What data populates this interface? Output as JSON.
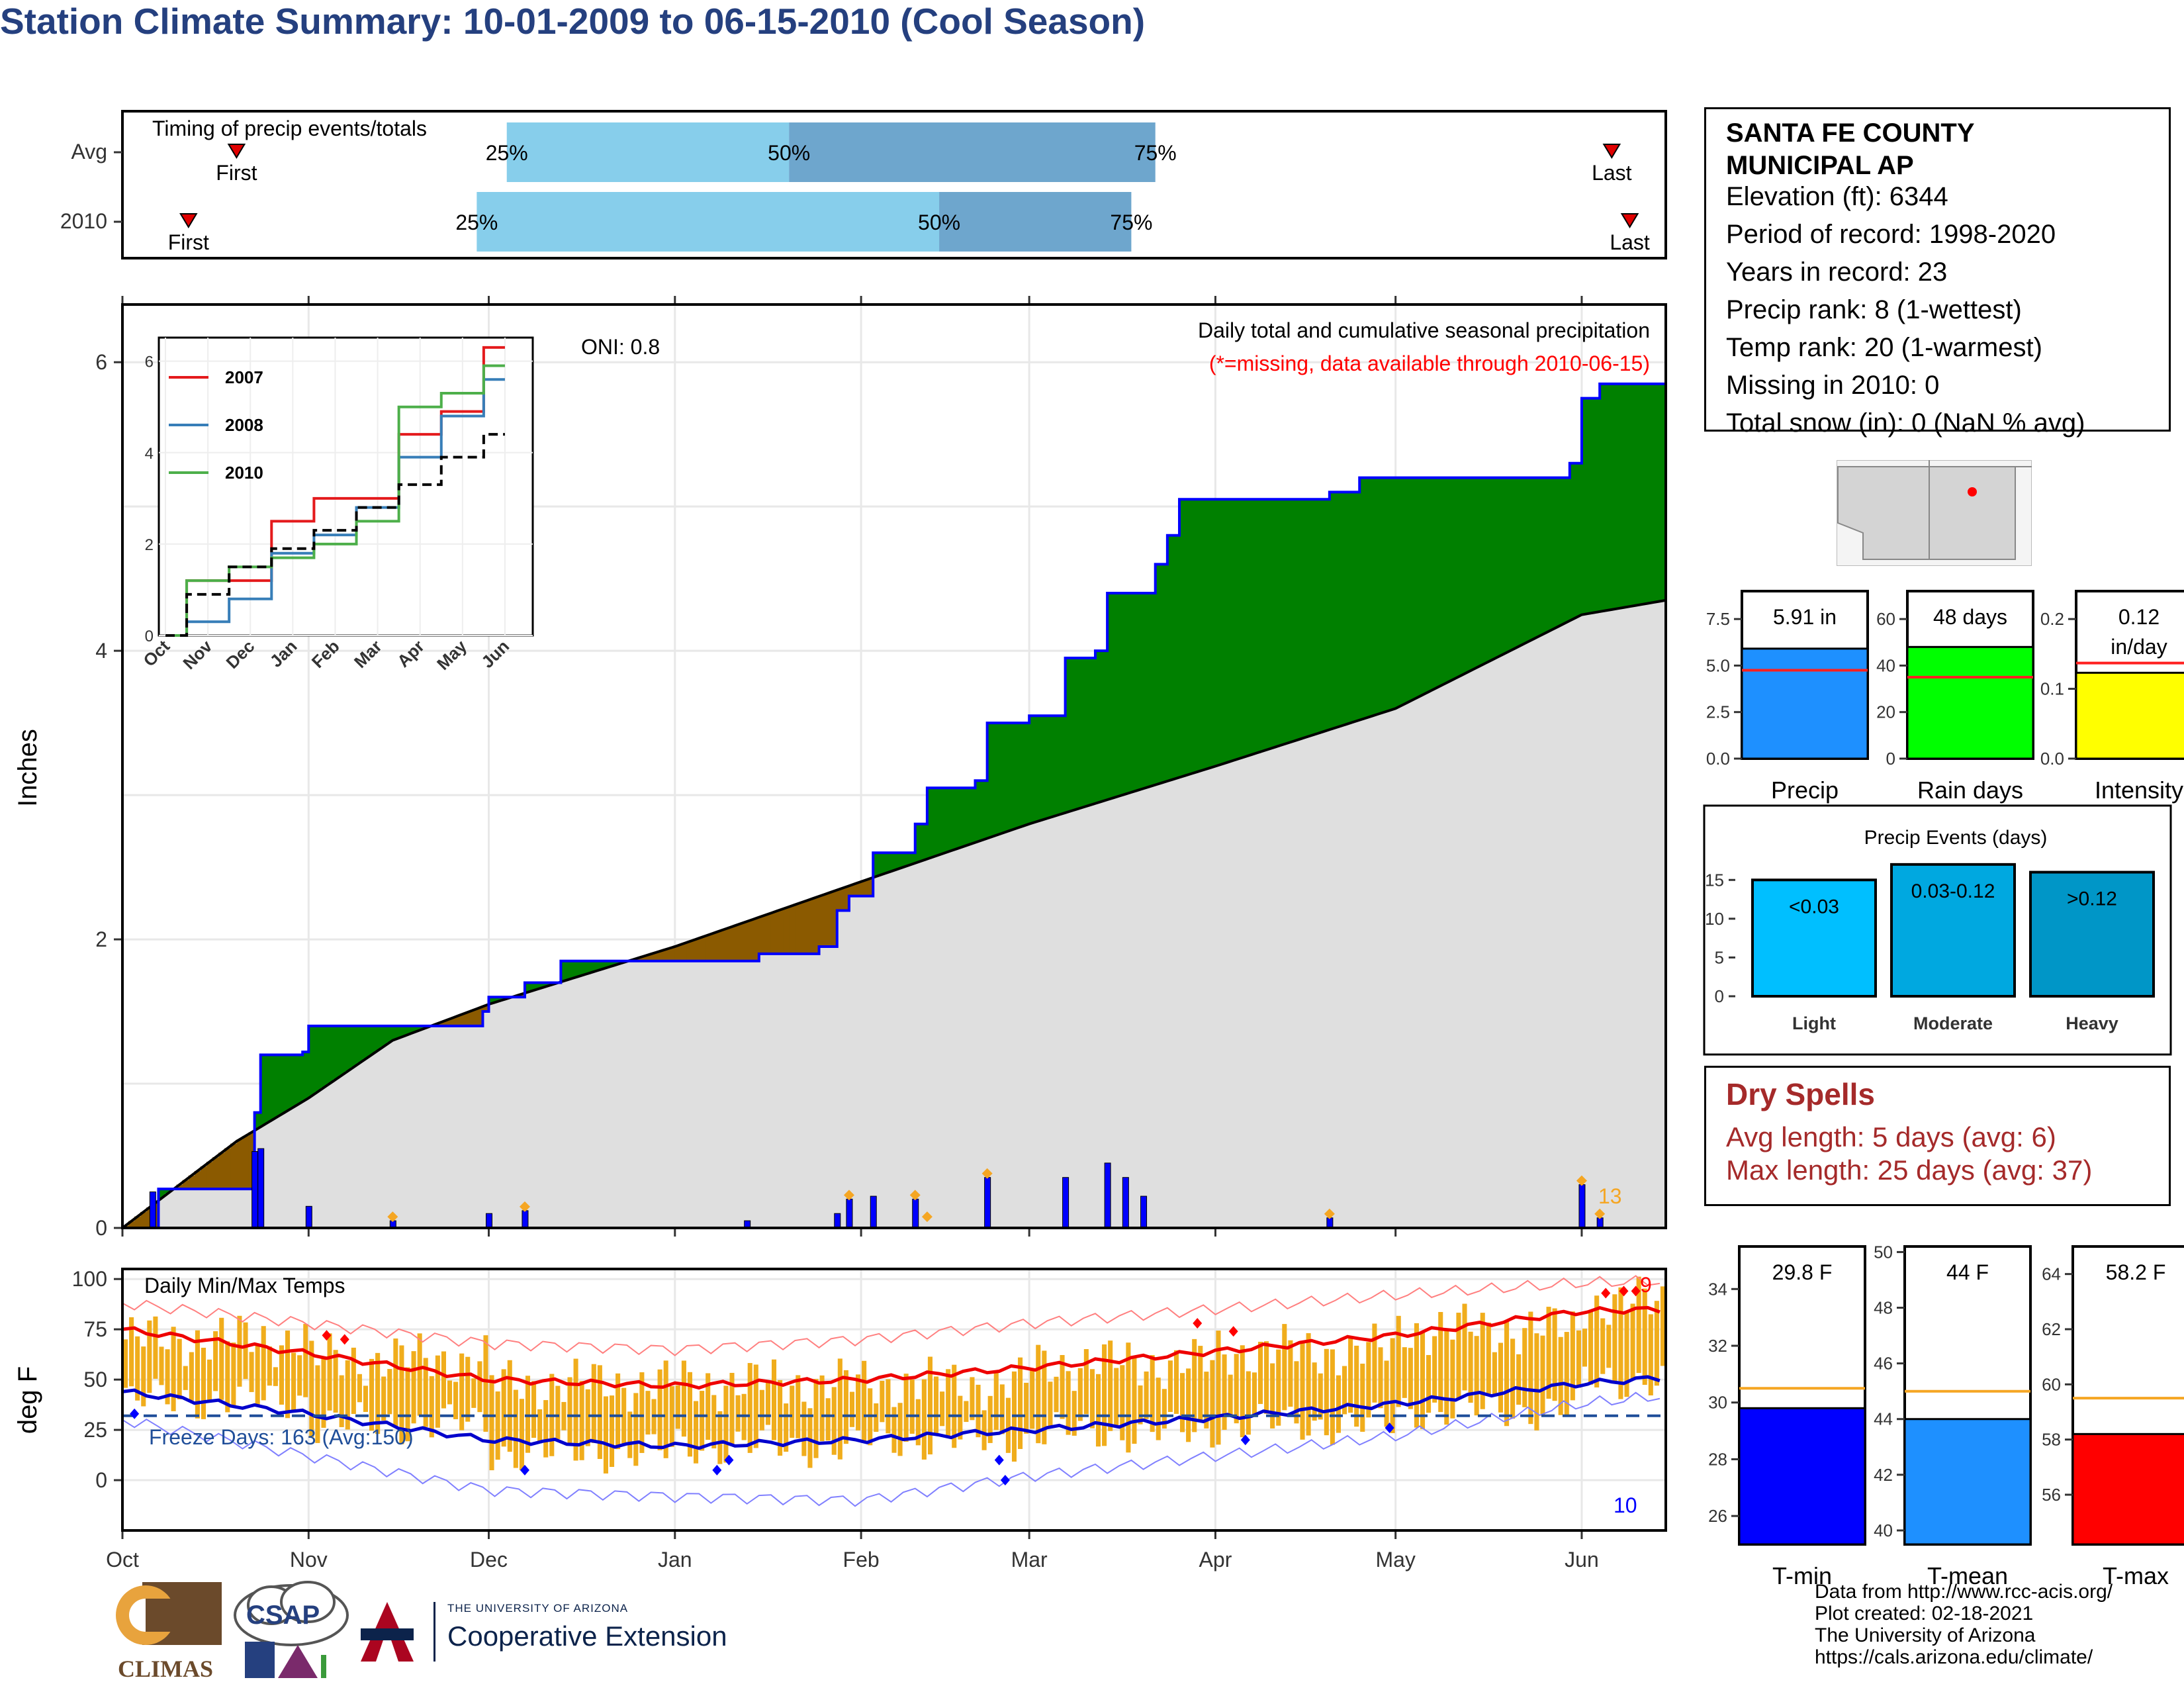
{
  "title": "Station Climate Summary: 10-01-2009 to 06-15-2010 (Cool Season)",
  "colors": {
    "title": "#25407f",
    "light_blue": "#87ceeb",
    "mid_blue": "#6ea6cd",
    "above_normal": "#008000",
    "below_normal": "#8b5a00",
    "normal_fill": "#dfdfdf",
    "precip_line": "#0000ff",
    "temp_bar": "#f0ad1c",
    "tmax_normal": "#ee0000",
    "tmin_normal": "#0000cc",
    "dry_spell_text": "#a52a2a"
  },
  "timing": {
    "title": "Timing of precip events/totals",
    "rows": [
      {
        "label": "Avg",
        "first_label": "First",
        "last_label": "Last",
        "first": "Oct 20",
        "last": "Jun 6",
        "p25_label": "25%",
        "p50_label": "50%",
        "p75_label": "75%",
        "p25": "Dec 4",
        "p50": "Jan 20",
        "p75": "Mar 22"
      },
      {
        "label": "2010",
        "first_label": "First",
        "last_label": "Last",
        "first": "Oct 12",
        "last": "Jun 9",
        "p25_label": "25%",
        "p50_label": "50%",
        "p75_label": "75%",
        "p25": "Nov 29",
        "p50": "Feb 14",
        "p75": "Mar 18"
      }
    ]
  },
  "precip_panel": {
    "ylabel": "Inches",
    "oni_label": "ONI: 0.8",
    "title": "Daily total and cumulative seasonal precipitation",
    "missing_note": "(*=missing, data available through 2010-06-15)",
    "count_label": "13",
    "ylim": [
      0,
      6.4
    ],
    "yticks": [
      "0",
      "2",
      "4",
      "6"
    ]
  },
  "inset": {
    "legend": [
      "2007",
      "2008",
      "2010"
    ],
    "legend_colors": [
      "#e41a1c",
      "#377eb8",
      "#4daf4a"
    ],
    "months": [
      "Oct",
      "Nov",
      "Dec",
      "Jan",
      "Feb",
      "Mar",
      "Apr",
      "May",
      "Jun"
    ],
    "yticks": [
      "0",
      "2",
      "4",
      "6"
    ]
  },
  "temp_panel": {
    "ylabel": "deg F",
    "title": "Daily Min/Max Temps",
    "freeze_label": "Freeze Days: 163 (Avg:150)",
    "hot_count": "9",
    "cold_count": "10",
    "yticks": [
      "0",
      "25",
      "50",
      "75",
      "100"
    ],
    "months": [
      "Oct",
      "Nov",
      "Dec",
      "Jan",
      "Feb",
      "Mar",
      "Apr",
      "May",
      "Jun"
    ]
  },
  "station": {
    "name_line1": "SANTA FE COUNTY",
    "name_line2": "MUNICIPAL AP",
    "elevation": "Elevation (ft): 6344",
    "period": "Period of record: 1998-2020",
    "years": "Years in record: 23",
    "precip_rank": "Precip rank: 8 (1-wettest)",
    "temp_rank": "Temp rank: 20 (1-warmest)",
    "missing": "Missing in 2010: 0",
    "snow": "Total snow (in): 0 (NaN % avg)"
  },
  "summary_bars": [
    {
      "name": "Precip",
      "value_label": "5.91 in",
      "value": 5.91,
      "avg": 4.75,
      "ymax": 9.0,
      "ticks": [
        "0.0",
        "2.5",
        "5.0",
        "7.5"
      ],
      "color": "#1e90ff"
    },
    {
      "name": "Rain days",
      "value_label": "48 days",
      "value": 48,
      "avg": 35,
      "ymax": 72,
      "ticks": [
        "0",
        "20",
        "40",
        "60"
      ],
      "color": "#00ff00"
    },
    {
      "name": "Intensity",
      "value_label_1": "0.12",
      "value_label_2": "in/day",
      "value": 0.123,
      "avg": 0.137,
      "ymax": 0.24,
      "ticks": [
        "0.0",
        "0.1",
        "0.2"
      ],
      "color": "#ffff00"
    }
  ],
  "precip_events": {
    "title": "Precip Events (days)",
    "categories": [
      "Light",
      "Moderate",
      "Heavy"
    ],
    "range_labels": [
      "<0.03",
      "0.03-0.12",
      ">0.12"
    ],
    "values": [
      15,
      17,
      16
    ],
    "colors": [
      "#00bfff",
      "#00a8e0",
      "#0096c7"
    ],
    "ticks": [
      "0",
      "5",
      "10",
      "15"
    ]
  },
  "dry_spells": {
    "title": "Dry Spells",
    "avg_length": "Avg length: 5 days (avg: 6)",
    "max_length": "Max length: 25 days (avg: 37)"
  },
  "temp_bars": [
    {
      "name": "T-min",
      "value_label": "29.8 F",
      "value": 29.8,
      "avg": 30.5,
      "ymin": 25,
      "ymax": 35.5,
      "ticks": [
        "26",
        "28",
        "30",
        "32",
        "34"
      ],
      "color": "#0000ff"
    },
    {
      "name": "T-mean",
      "value_label": "44 F",
      "value": 44.0,
      "avg": 45.0,
      "ymin": 39.5,
      "ymax": 50.2,
      "ticks": [
        "40",
        "42",
        "44",
        "46",
        "48",
        "50"
      ],
      "color": "#1e90ff"
    },
    {
      "name": "T-max",
      "value_label": "58.2 F",
      "value": 58.2,
      "avg": 59.5,
      "ymin": 54.2,
      "ymax": 65.0,
      "ticks": [
        "56",
        "58",
        "60",
        "62",
        "64"
      ],
      "color": "#ff0000"
    }
  ],
  "logos": {
    "climas": "CLIMAS",
    "csap": "CSAP",
    "ua_line1": "THE UNIVERSITY OF ARIZONA",
    "ua_line2": "Cooperative Extension"
  },
  "credits": {
    "line1": "Data from http://www.rcc-acis.org/",
    "line2": "Plot created: 02-18-2021",
    "line3": "The University of Arizona",
    "line4": "https://cals.arizona.edu/climate/"
  },
  "chart_data": [
    {
      "type": "area",
      "title": "Daily total and cumulative seasonal precipitation",
      "ylabel": "Inches",
      "ylim": [
        0,
        6.4
      ],
      "x_range": [
        "2009-10-01",
        "2010-06-15"
      ],
      "cumulative_observed": [
        {
          "x": "2009-10-01",
          "y": 0.0
        },
        {
          "x": "2009-10-07",
          "y": 0.27
        },
        {
          "x": "2009-10-08",
          "y": 0.27
        },
        {
          "x": "2009-10-22",
          "y": 0.27
        },
        {
          "x": "2009-10-23",
          "y": 0.8
        },
        {
          "x": "2009-10-24",
          "y": 1.2
        },
        {
          "x": "2009-10-31",
          "y": 1.22
        },
        {
          "x": "2009-11-01",
          "y": 1.4
        },
        {
          "x": "2009-11-30",
          "y": 1.5
        },
        {
          "x": "2009-12-01",
          "y": 1.6
        },
        {
          "x": "2009-12-07",
          "y": 1.7
        },
        {
          "x": "2009-12-13",
          "y": 1.85
        },
        {
          "x": "2010-01-15",
          "y": 1.9
        },
        {
          "x": "2010-01-25",
          "y": 1.95
        },
        {
          "x": "2010-01-28",
          "y": 2.2
        },
        {
          "x": "2010-01-30",
          "y": 2.3
        },
        {
          "x": "2010-02-03",
          "y": 2.6
        },
        {
          "x": "2010-02-10",
          "y": 2.8
        },
        {
          "x": "2010-02-12",
          "y": 3.05
        },
        {
          "x": "2010-02-20",
          "y": 3.1
        },
        {
          "x": "2010-02-22",
          "y": 3.5
        },
        {
          "x": "2010-03-01",
          "y": 3.55
        },
        {
          "x": "2010-03-07",
          "y": 3.95
        },
        {
          "x": "2010-03-12",
          "y": 4.0
        },
        {
          "x": "2010-03-14",
          "y": 4.4
        },
        {
          "x": "2010-03-22",
          "y": 4.6
        },
        {
          "x": "2010-03-24",
          "y": 4.8
        },
        {
          "x": "2010-03-26",
          "y": 5.05
        },
        {
          "x": "2010-04-20",
          "y": 5.1
        },
        {
          "x": "2010-04-25",
          "y": 5.2
        },
        {
          "x": "2010-05-30",
          "y": 5.3
        },
        {
          "x": "2010-06-01",
          "y": 5.75
        },
        {
          "x": "2010-06-04",
          "y": 5.85
        },
        {
          "x": "2010-06-15",
          "y": 5.91
        }
      ],
      "cumulative_normal": [
        {
          "x": "2009-10-01",
          "y": 0.0
        },
        {
          "x": "2009-10-20",
          "y": 0.6
        },
        {
          "x": "2009-11-01",
          "y": 0.9
        },
        {
          "x": "2009-11-15",
          "y": 1.3
        },
        {
          "x": "2009-12-01",
          "y": 1.55
        },
        {
          "x": "2010-01-01",
          "y": 1.95
        },
        {
          "x": "2010-02-01",
          "y": 2.4
        },
        {
          "x": "2010-03-01",
          "y": 2.8
        },
        {
          "x": "2010-04-01",
          "y": 3.2
        },
        {
          "x": "2010-05-01",
          "y": 3.6
        },
        {
          "x": "2010-06-01",
          "y": 4.25
        },
        {
          "x": "2010-06-15",
          "y": 4.35
        }
      ],
      "daily_precip": [
        {
          "x": "2009-10-06",
          "y": 0.25
        },
        {
          "x": "2009-10-23",
          "y": 0.53
        },
        {
          "x": "2009-10-24",
          "y": 0.55
        },
        {
          "x": "2009-11-01",
          "y": 0.15
        },
        {
          "x": "2009-11-15",
          "y": 0.05
        },
        {
          "x": "2009-12-01",
          "y": 0.1
        },
        {
          "x": "2009-12-07",
          "y": 0.12
        },
        {
          "x": "2010-01-13",
          "y": 0.05
        },
        {
          "x": "2010-01-28",
          "y": 0.1
        },
        {
          "x": "2010-01-30",
          "y": 0.2
        },
        {
          "x": "2010-02-03",
          "y": 0.22
        },
        {
          "x": "2010-02-10",
          "y": 0.2
        },
        {
          "x": "2010-02-22",
          "y": 0.35
        },
        {
          "x": "2010-03-07",
          "y": 0.35
        },
        {
          "x": "2010-03-14",
          "y": 0.45
        },
        {
          "x": "2010-03-17",
          "y": 0.35
        },
        {
          "x": "2010-03-20",
          "y": 0.22
        },
        {
          "x": "2010-04-20",
          "y": 0.07
        },
        {
          "x": "2010-06-01",
          "y": 0.3
        },
        {
          "x": "2010-06-04",
          "y": 0.07
        }
      ]
    },
    {
      "type": "line",
      "title": "",
      "x_months": [
        "Oct",
        "Nov",
        "Dec",
        "Jan",
        "Feb",
        "Mar",
        "Apr",
        "May",
        "Jun"
      ],
      "ylim": [
        0,
        6.4
      ],
      "series": [
        {
          "name": "2007",
          "values": [
            0,
            1.2,
            1.2,
            2.5,
            3.0,
            3.0,
            4.4,
            4.9,
            6.3
          ]
        },
        {
          "name": "2008",
          "values": [
            0,
            0.3,
            0.8,
            1.8,
            2.2,
            2.8,
            3.9,
            4.8,
            5.6
          ]
        },
        {
          "name": "2010",
          "values": [
            0,
            1.2,
            1.5,
            1.7,
            2.0,
            2.5,
            5.0,
            5.3,
            5.9
          ]
        },
        {
          "name": "",
          "values": [
            0,
            0.9,
            1.5,
            1.9,
            2.3,
            2.8,
            3.3,
            3.9,
            4.4
          ]
        }
      ]
    },
    {
      "type": "bar",
      "title": "Daily Min/Max Temps",
      "ylabel": "deg F",
      "ylim": [
        -25,
        105
      ],
      "x_range": [
        "2009-10-01",
        "2010-06-15"
      ],
      "normal_max": [
        {
          "x": "2009-10-01",
          "y": 75
        },
        {
          "x": "2009-11-01",
          "y": 63
        },
        {
          "x": "2009-12-01",
          "y": 50
        },
        {
          "x": "2010-01-01",
          "y": 47
        },
        {
          "x": "2010-02-01",
          "y": 50
        },
        {
          "x": "2010-03-01",
          "y": 56
        },
        {
          "x": "2010-04-01",
          "y": 64
        },
        {
          "x": "2010-05-01",
          "y": 72
        },
        {
          "x": "2010-06-01",
          "y": 84
        },
        {
          "x": "2010-06-15",
          "y": 85
        }
      ],
      "normal_min": [
        {
          "x": "2009-10-01",
          "y": 44
        },
        {
          "x": "2009-11-01",
          "y": 33
        },
        {
          "x": "2009-12-01",
          "y": 20
        },
        {
          "x": "2010-01-01",
          "y": 17
        },
        {
          "x": "2010-02-01",
          "y": 20
        },
        {
          "x": "2010-03-01",
          "y": 25
        },
        {
          "x": "2010-04-01",
          "y": 31
        },
        {
          "x": "2010-05-01",
          "y": 38
        },
        {
          "x": "2010-06-01",
          "y": 48
        },
        {
          "x": "2010-06-15",
          "y": 51
        }
      ],
      "record_max": [
        {
          "x": "2009-10-01",
          "y": 88
        },
        {
          "x": "2009-11-01",
          "y": 78
        },
        {
          "x": "2009-12-01",
          "y": 68
        },
        {
          "x": "2010-01-01",
          "y": 65
        },
        {
          "x": "2010-02-01",
          "y": 70
        },
        {
          "x": "2010-03-01",
          "y": 78
        },
        {
          "x": "2010-04-01",
          "y": 85
        },
        {
          "x": "2010-05-01",
          "y": 92
        },
        {
          "x": "2010-06-01",
          "y": 98
        },
        {
          "x": "2010-06-15",
          "y": 99
        }
      ],
      "record_min": [
        {
          "x": "2009-10-01",
          "y": 30
        },
        {
          "x": "2009-11-01",
          "y": 12
        },
        {
          "x": "2009-12-01",
          "y": -5
        },
        {
          "x": "2010-01-01",
          "y": -8
        },
        {
          "x": "2010-02-01",
          "y": -10
        },
        {
          "x": "2010-03-01",
          "y": 2
        },
        {
          "x": "2010-04-01",
          "y": 12
        },
        {
          "x": "2010-05-01",
          "y": 22
        },
        {
          "x": "2010-06-01",
          "y": 38
        },
        {
          "x": "2010-06-15",
          "y": 42
        }
      ],
      "daily_range_monthly": [
        {
          "month": "Oct",
          "min": 40,
          "max": 70
        },
        {
          "month": "Nov",
          "min": 28,
          "max": 60
        },
        {
          "month": "Dec",
          "min": 14,
          "max": 48
        },
        {
          "month": "Jan",
          "min": 17,
          "max": 48
        },
        {
          "month": "Feb",
          "min": 20,
          "max": 48
        },
        {
          "month": "Mar",
          "min": 24,
          "max": 58
        },
        {
          "month": "Apr",
          "min": 28,
          "max": 64
        },
        {
          "month": "May",
          "min": 35,
          "max": 75
        },
        {
          "month": "Jun",
          "min": 50,
          "max": 88
        }
      ],
      "freeze_threshold": 32
    }
  ]
}
